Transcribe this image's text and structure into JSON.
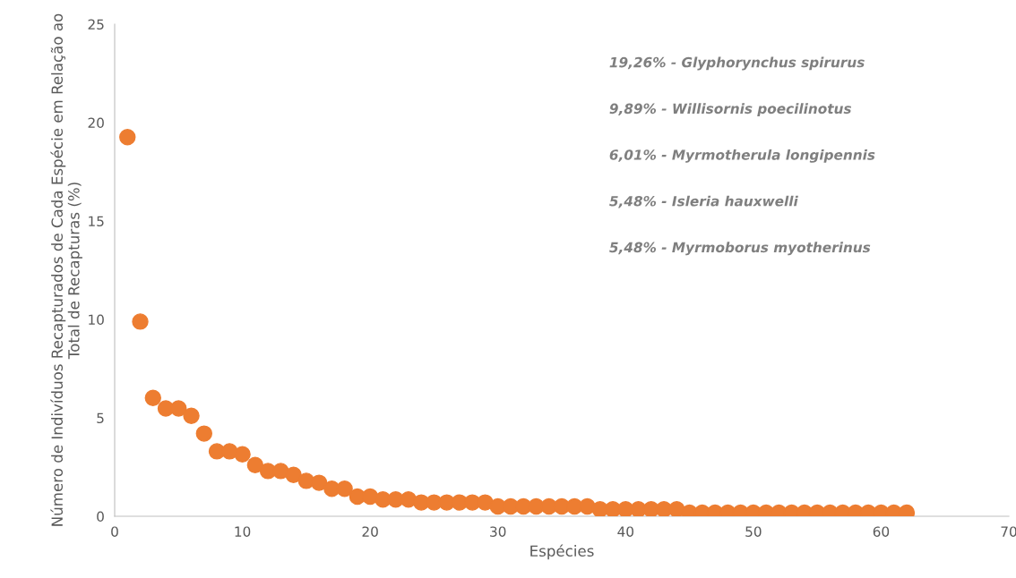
{
  "chart_data": {
    "type": "scatter",
    "xlabel": "Espécies",
    "ylabel": "Número de Indivíduos Recapturados de Cada Espécie em Relação ao Total de Recapturas (%)",
    "x": [
      1,
      2,
      3,
      4,
      5,
      6,
      7,
      8,
      9,
      10,
      11,
      12,
      13,
      14,
      15,
      16,
      17,
      18,
      19,
      20,
      21,
      22,
      23,
      24,
      25,
      26,
      27,
      28,
      29,
      30,
      31,
      32,
      33,
      34,
      35,
      36,
      37,
      38,
      39,
      40,
      41,
      42,
      43,
      44,
      45,
      46,
      47,
      48,
      49,
      50,
      51,
      52,
      53,
      54,
      55,
      56,
      57,
      58,
      59,
      60,
      61,
      62
    ],
    "series": [
      {
        "color": "#ed7d31",
        "values": [
          19.26,
          9.89,
          6.01,
          5.48,
          5.48,
          5.1,
          4.2,
          3.3,
          3.3,
          3.15,
          2.6,
          2.3,
          2.3,
          2.1,
          1.8,
          1.7,
          1.4,
          1.4,
          1.0,
          1.0,
          0.85,
          0.85,
          0.85,
          0.7,
          0.7,
          0.7,
          0.7,
          0.7,
          0.7,
          0.5,
          0.5,
          0.5,
          0.5,
          0.5,
          0.5,
          0.5,
          0.5,
          0.35,
          0.35,
          0.35,
          0.35,
          0.35,
          0.35,
          0.35,
          0.18,
          0.18,
          0.18,
          0.18,
          0.18,
          0.18,
          0.18,
          0.18,
          0.18,
          0.18,
          0.18,
          0.18,
          0.18,
          0.18,
          0.18,
          0.18,
          0.18,
          0.18
        ]
      }
    ],
    "xlim": [
      0,
      70
    ],
    "xticks": [
      0,
      10,
      20,
      30,
      40,
      50,
      60,
      70
    ],
    "ylim": [
      0,
      25
    ],
    "yticks": [
      0,
      5,
      10,
      15,
      20,
      25
    ],
    "marker": "circle",
    "grid": false,
    "legend": false,
    "annotations": [
      "19,26% - Glyphorynchus spirurus",
      "9,89% - Willisornis poecilinotus",
      "6,01% - Myrmotherula longipennis",
      "5,48% - Isleria hauxwelli",
      "5,48% - Myrmoborus myotherinus"
    ]
  }
}
